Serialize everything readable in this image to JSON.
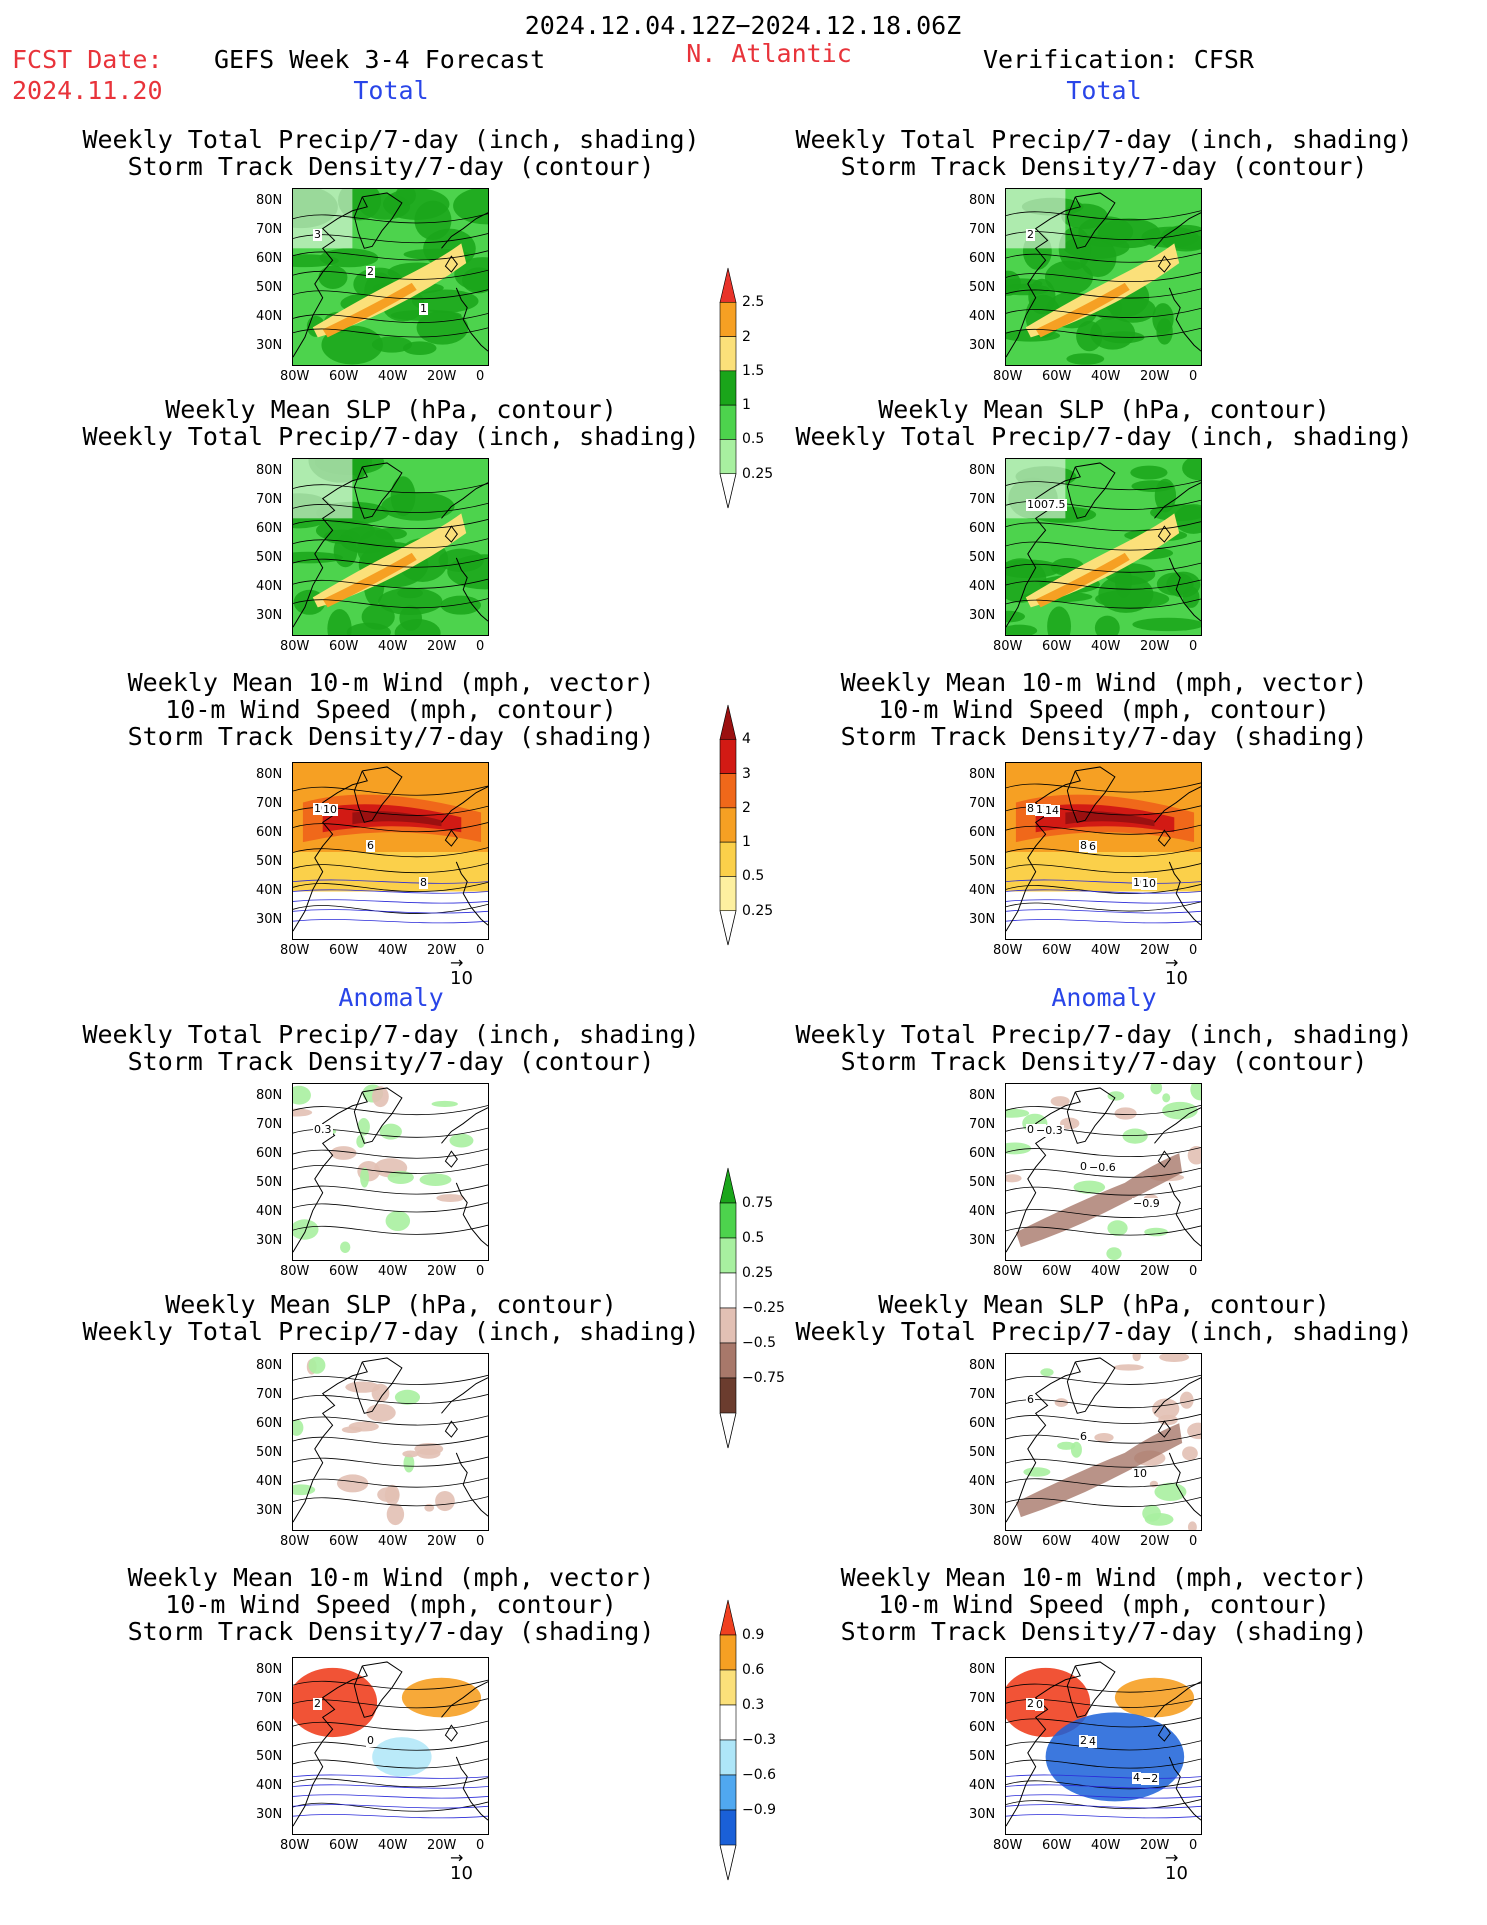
{
  "header": {
    "period": "2024.12.04.12Z−2024.12.18.06Z",
    "fcst_date_label": "FCST Date:",
    "fcst_date_value": "2024.11.20",
    "forecast_label": "GEFS Week 3-4 Forecast",
    "region": "N. Atlantic",
    "verification": "Verification: CFSR"
  },
  "sections": {
    "total": "Total",
    "anomaly": "Anomaly"
  },
  "titles": {
    "precip_storm": "Weekly Total Precip/7-day (inch, shading)\nStorm Track Density/7-day (contour)",
    "slp_precip": "Weekly Mean SLP (hPa, contour)\nWeekly Total Precip/7-day (inch, shading)",
    "wind_storm": "Weekly Mean 10-m Wind (mph, vector)\n10-m Wind Speed (mph, contour)\nStorm Track Density/7-day (shading)"
  },
  "axes": {
    "lat_ticks": [
      "80N",
      "70N",
      "60N",
      "50N",
      "40N",
      "30N"
    ],
    "lon_ticks": [
      "80W",
      "60W",
      "40W",
      "20W",
      "0"
    ]
  },
  "vector_ref": "10",
  "colorbars": {
    "precip_total": {
      "labels": [
        "2.5",
        "2",
        "1.5",
        "1",
        "0.5",
        "0.25"
      ],
      "colors": [
        "#e8332a",
        "#f6a023",
        "#fbe07a",
        "#1aa51a",
        "#4dd34d",
        "#a8f0a0"
      ]
    },
    "storm_total": {
      "labels": [
        "4",
        "3",
        "2",
        "1",
        "0.5",
        "0.25"
      ],
      "colors": [
        "#9b1010",
        "#d21a14",
        "#f0681a",
        "#f6a023",
        "#fbd04a",
        "#fdf0a0"
      ]
    },
    "precip_anom": {
      "labels": [
        "0.75",
        "0.5",
        "0.25",
        "−0.25",
        "−0.5",
        "−0.75"
      ],
      "colors": [
        "#1aa51a",
        "#4dd34d",
        "#a8f0a0",
        "#ffffff",
        "#e2c0b4",
        "#a8786a",
        "#6b3c2e"
      ]
    },
    "storm_anom": {
      "labels": [
        "0.9",
        "0.6",
        "0.3",
        "−0.3",
        "−0.6",
        "−0.9"
      ],
      "colors": [
        "#f04020",
        "#f6a023",
        "#fbe07a",
        "#ffffff",
        "#aee6f8",
        "#50a8f0",
        "#1a60d8"
      ]
    }
  },
  "contour_labels": {
    "fc_precip_storm": [
      "3",
      "2",
      "1"
    ],
    "ob_precip_storm": [
      "2"
    ],
    "ob_slp_precip": [
      "1007.5"
    ],
    "fc_wind": [
      "10",
      "6",
      "8",
      "10"
    ],
    "ob_wind": [
      "8",
      "8",
      "10",
      "12",
      "6",
      "10",
      "14"
    ],
    "fa_precip_storm": [
      "0.3"
    ],
    "oa_precip_storm": [
      "0.3",
      "0.6",
      "−0.9",
      "−0.3",
      "−0.6"
    ],
    "oa_slp_precip": [
      "6",
      "6",
      "10"
    ],
    "fa_wind": [
      "2",
      "0"
    ],
    "oa_wind": [
      "2",
      "2",
      "4",
      "0",
      "4",
      "−2"
    ]
  }
}
